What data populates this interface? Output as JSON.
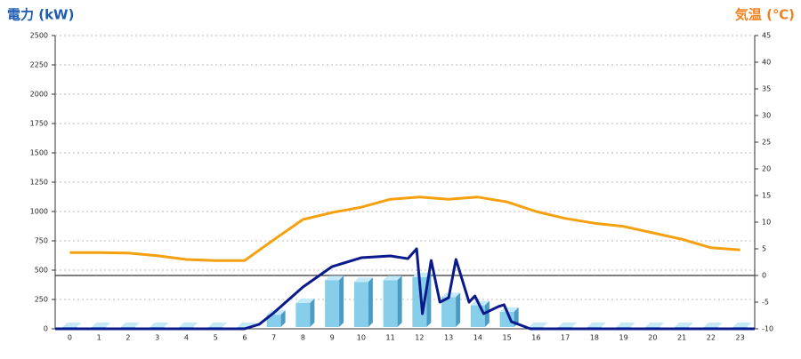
{
  "chart_data": {
    "type": "bar",
    "title": "電力 (kW)",
    "y2_title": "気温 (℃)",
    "categories": [
      "0",
      "1",
      "2",
      "3",
      "4",
      "5",
      "6",
      "7",
      "8",
      "9",
      "10",
      "11",
      "12",
      "13",
      "14",
      "15",
      "16",
      "17",
      "18",
      "19",
      "20",
      "21",
      "22",
      "23"
    ],
    "xlim": [
      -0.5,
      23.5
    ],
    "ylim": [
      0,
      2500
    ],
    "yticks": [
      0,
      250,
      500,
      750,
      1000,
      1250,
      1500,
      1750,
      2000,
      2250,
      2500
    ],
    "y2lim": [
      -10,
      45
    ],
    "y2ticks": [
      -10,
      -5,
      0,
      5,
      10,
      15,
      20,
      25,
      30,
      35,
      40,
      45
    ],
    "grid": true,
    "series": [
      {
        "type": "bar",
        "color": "#87ceeb",
        "values": [
          0,
          0,
          0,
          0,
          0,
          0,
          0,
          120,
          220,
          415,
          400,
          415,
          440,
          270,
          200,
          145,
          0,
          0,
          0,
          0,
          0,
          0,
          0,
          0
        ]
      },
      {
        "type": "line",
        "color": "#0a1a8c",
        "x": [
          -0.5,
          6.0,
          6.5,
          7.0,
          8.0,
          9.0,
          10.0,
          11.0,
          11.6,
          11.9,
          12.1,
          12.4,
          12.7,
          13.0,
          13.25,
          13.7,
          13.9,
          14.2,
          14.7,
          14.9,
          15.15,
          15.8,
          23.5
        ],
        "values": [
          0,
          0,
          38,
          136,
          356,
          530,
          606,
          621,
          598,
          682,
          129,
          583,
          227,
          265,
          591,
          227,
          280,
          129,
          189,
          205,
          61,
          0,
          0
        ]
      },
      {
        "type": "line",
        "color": "#f5a010",
        "axis": "y2",
        "values": [
          4.3,
          4.3,
          4.2,
          3.7,
          3.0,
          2.8,
          2.8,
          6.7,
          10.5,
          11.8,
          12.8,
          14.3,
          14.7,
          14.3,
          14.7,
          13.8,
          12.0,
          10.7,
          9.8,
          9.2,
          8.0,
          6.8,
          5.2,
          4.8
        ]
      }
    ]
  }
}
